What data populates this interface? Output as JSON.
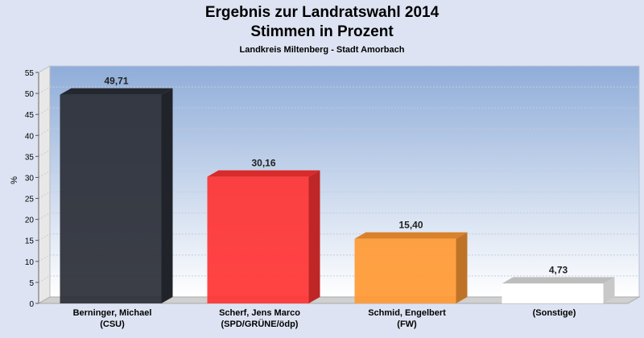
{
  "chart_data": {
    "type": "bar",
    "title": "Ergebnis zur Landratswahl 2014",
    "title_line2": "Stimmen in Prozent",
    "subtitle": "Landkreis Miltenberg - Stadt Amorbach",
    "ylabel": "%",
    "ylim": [
      0,
      55
    ],
    "yticks": [
      "0",
      "5",
      "10",
      "15",
      "20",
      "25",
      "30",
      "35",
      "40",
      "45",
      "50",
      "55"
    ],
    "categories": [
      [
        "Berninger, Michael",
        "(CSU)"
      ],
      [
        "Scherf, Jens Marco",
        "(SPD/GRÜNE/ödp)"
      ],
      [
        "Schmid, Engelbert",
        "(FW)"
      ],
      [
        "(Sonstige)"
      ]
    ],
    "values": [
      49.71,
      30.16,
      15.4,
      4.73
    ],
    "data_labels": [
      "49,71",
      "30,16",
      "15,40",
      "4,73"
    ],
    "colors": [
      "#2a2e36",
      "#ff3333",
      "#ff9933",
      "#ffffff"
    ],
    "grid": true,
    "legend": "none"
  }
}
